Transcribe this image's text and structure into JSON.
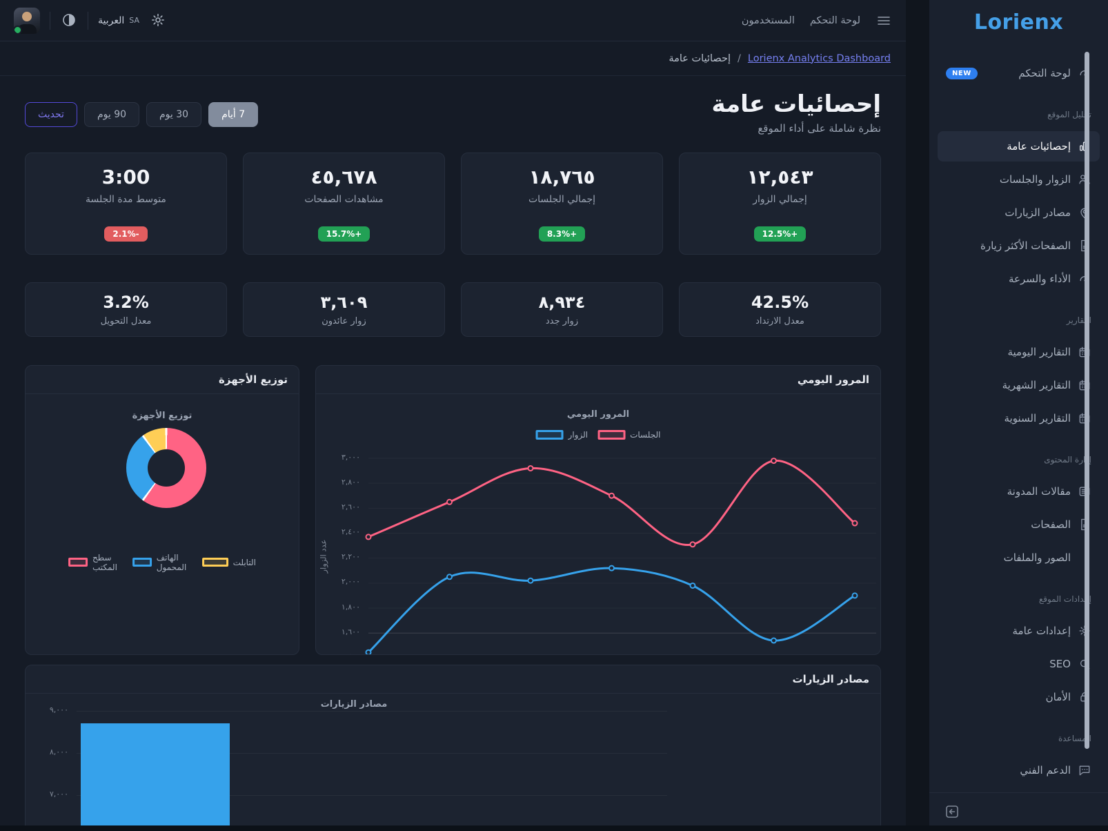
{
  "colors": {
    "accent_blue": "#36a2eb",
    "accent_pink": "#ff6384",
    "accent_yellow": "#ffce56",
    "green_badge": "#22a155",
    "red_badge": "#e25d5f",
    "refresh_accent": "#8079f2",
    "link": "#7680f2",
    "logo_blue": "#45a0e8",
    "new_badge_blue": "#2e7ff0"
  },
  "topbar": {
    "menu_icon": "hamburger-icon",
    "links": [
      {
        "label": "لوحة التحكم"
      },
      {
        "label": "المستخدمون"
      }
    ],
    "language": {
      "code": "SA",
      "name": "العربية"
    },
    "gear_icon": "gear-icon",
    "theme_icon": "contrast-icon",
    "avatar_status": "online"
  },
  "breadcrumb": {
    "link": "Lorienx Analytics Dashboard",
    "separator": "/",
    "current": "إحصائيات عامة"
  },
  "sidebar": {
    "logo": "Lorienx",
    "sections": [
      {
        "title": "",
        "items": [
          {
            "label": "لوحة التحكم",
            "icon": "gauge-icon",
            "badge": "NEW"
          }
        ]
      },
      {
        "title": "تحليل الموقع",
        "items": [
          {
            "label": "إحصائيات عامة",
            "icon": "bar-chart-icon",
            "active": true
          },
          {
            "label": "الزوار والجلسات",
            "icon": "users-icon"
          },
          {
            "label": "مصادر الزيارات",
            "icon": "map-pin-icon"
          },
          {
            "label": "الصفحات الأكثر زيارة",
            "icon": "document-icon"
          },
          {
            "label": "الأداء والسرعة",
            "icon": "gauge-icon"
          }
        ]
      },
      {
        "title": "التقارير",
        "items": [
          {
            "label": "التقارير اليومية",
            "icon": "calendar-icon"
          },
          {
            "label": "التقارير الشهرية",
            "icon": "calendar-icon"
          },
          {
            "label": "التقارير السنوية",
            "icon": "calendar-icon"
          }
        ]
      },
      {
        "title": "إدارة المحتوى",
        "items": [
          {
            "label": "مقالات المدونة",
            "icon": "article-icon"
          },
          {
            "label": "الصفحات",
            "icon": "document-icon"
          },
          {
            "label": "الصور والملفات",
            "icon": ""
          }
        ]
      },
      {
        "title": "إعدادات الموقع",
        "items": [
          {
            "label": "إعدادات عامة",
            "icon": "gear-icon"
          },
          {
            "label": "SEO",
            "icon": "search-icon"
          },
          {
            "label": "الأمان",
            "icon": "lock-icon"
          }
        ]
      },
      {
        "title": "المساعدة",
        "items": [
          {
            "label": "الدعم الفني",
            "icon": "chat-icon"
          }
        ]
      }
    ],
    "collapse_icon": "collapse-icon"
  },
  "page": {
    "title": "إحصائيات عامة",
    "subtitle": "نظرة شاملة على أداء الموقع"
  },
  "range_buttons": [
    {
      "label": "7 أيام",
      "active": true
    },
    {
      "label": "30 يوم"
    },
    {
      "label": "90 يوم"
    },
    {
      "label": "تحديث",
      "variant": "outline"
    }
  ],
  "stats_row1": [
    {
      "value": "١٢,٥٤٣",
      "label": "إجمالي الزوار",
      "change": "+12.5%",
      "trend": "up"
    },
    {
      "value": "١٨,٧٦٥",
      "label": "إجمالي الجلسات",
      "change": "+8.3%",
      "trend": "up"
    },
    {
      "value": "٤٥,٦٧٨",
      "label": "مشاهدات الصفحات",
      "change": "+15.7%",
      "trend": "up"
    },
    {
      "value": "3:00",
      "label": "متوسط مدة الجلسة",
      "change": "-2.1%",
      "trend": "down"
    }
  ],
  "stats_row2": [
    {
      "value": "42.5%",
      "label": "معدل الارتداد"
    },
    {
      "value": "٨,٩٣٤",
      "label": "زوار جدد"
    },
    {
      "value": "٣,٦٠٩",
      "label": "زوار عائدون"
    },
    {
      "value": "3.2%",
      "label": "معدل التحويل"
    }
  ],
  "chart_data": [
    {
      "id": "daily_traffic",
      "type": "line",
      "card_title": "المرور اليومي",
      "title": "المرور اليومي",
      "ylabel": "عدد الزوار",
      "ylim": [
        1400,
        3000
      ],
      "grid": true,
      "legend_position": "top",
      "x_count": 7,
      "x_labels_visible": false,
      "yticks": [
        {
          "label": "٣,٠٠٠",
          "value": 3000
        },
        {
          "label": "٢,٨٠٠",
          "value": 2800
        },
        {
          "label": "٢,٦٠٠",
          "value": 2600
        },
        {
          "label": "٢,٤٠٠",
          "value": 2400
        },
        {
          "label": "٢,٢٠٠",
          "value": 2200
        },
        {
          "label": "٢,٠٠٠",
          "value": 2000
        },
        {
          "label": "١,٨٠٠",
          "value": 1800
        },
        {
          "label": "١,٦٠٠",
          "value": 1600
        },
        {
          "label": "١,٤٠٠",
          "value": 1400
        }
      ],
      "series": [
        {
          "name": "الزوار",
          "color": "#36a2eb",
          "values": [
            1445,
            2050,
            2020,
            2120,
            1980,
            1540,
            1900
          ]
        },
        {
          "name": "الجلسات",
          "color": "#ff6384",
          "values": [
            2370,
            2650,
            2920,
            2700,
            2310,
            2980,
            2480
          ]
        }
      ]
    },
    {
      "id": "device_distribution",
      "type": "pie",
      "donut": true,
      "card_title": "توزيع الأجهزة",
      "title": "توزيع الأجهزة",
      "labels": [
        "سطح المكتب",
        "الهاتف المحمول",
        "التابلت"
      ],
      "values_percent": [
        60,
        30,
        10
      ],
      "colors": [
        "#ff6384",
        "#36a2eb",
        "#ffce56"
      ],
      "legend_position": "bottom"
    },
    {
      "id": "traffic_sources",
      "type": "bar",
      "card_title": "مصادر الزيارات",
      "title": "مصادر الزيارات",
      "bar_color": "#36a2eb",
      "grid": true,
      "clipped_bottom": true,
      "yticks": [
        {
          "label": "٩,٠٠٠",
          "value": 9000
        },
        {
          "label": "٨,٠٠٠",
          "value": 8000
        },
        {
          "label": "٧,٠٠٠",
          "value": 7000
        }
      ],
      "visible_bars": [
        {
          "value": 8700
        }
      ]
    }
  ]
}
